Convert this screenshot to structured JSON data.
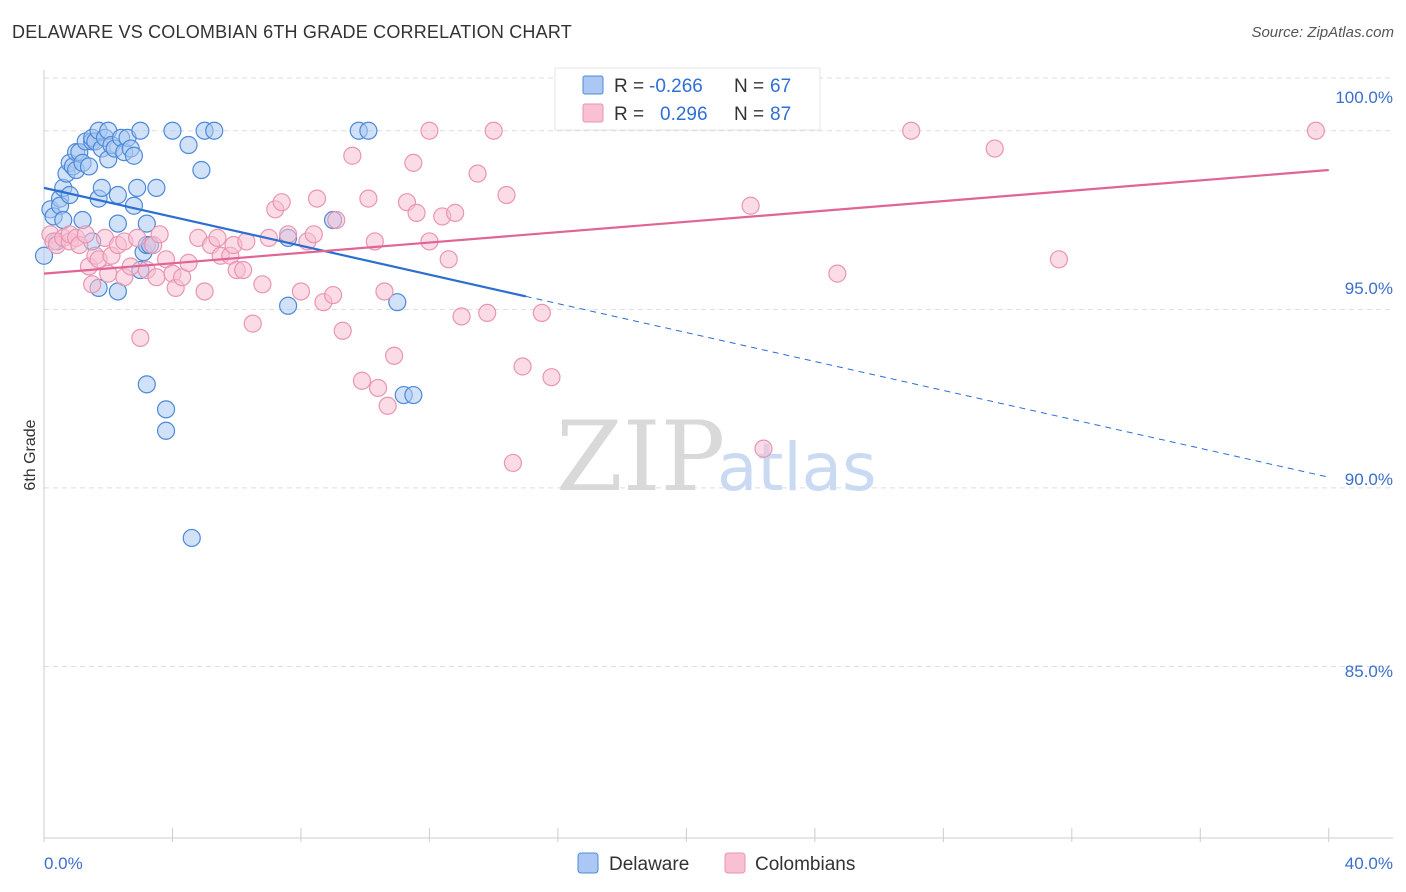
{
  "title": "DELAWARE VS COLOMBIAN 6TH GRADE CORRELATION CHART",
  "source": "Source: ZipAtlas.com",
  "watermark": {
    "zip": "ZIP",
    "atlas": "atlas"
  },
  "colors": {
    "delaware_fill": "#aac8f3",
    "delaware_stroke": "#4d8ad8",
    "delaware_line": "#2d6fd0",
    "colombian_fill": "#f8c0d2",
    "colombian_stroke": "#e995b2",
    "colombian_line": "#e06595",
    "tick_label": "#3b6fc9",
    "grid": "#dddddd"
  },
  "legend": {
    "rows": [
      {
        "series": "Delaware",
        "r_label": "R =",
        "r_value": "-0.266",
        "n_label": "N =",
        "n_value": "67"
      },
      {
        "series": "Colombians",
        "r_label": "R =",
        "r_value": "0.296",
        "n_label": "N =",
        "n_value": "87"
      }
    ]
  },
  "chart_data": {
    "type": "scatter",
    "title": "DELAWARE VS COLOMBIAN 6TH GRADE CORRELATION CHART",
    "xlabel": "",
    "ylabel": "6th Grade",
    "xlim": [
      0,
      42
    ],
    "ylim": [
      80.2,
      101.7
    ],
    "x_tick_labels": [
      "0.0%",
      "40.0%"
    ],
    "y_ticks": [
      100,
      95,
      90,
      85
    ],
    "y_tick_labels": [
      "100.0%",
      "95.0%",
      "90.0%",
      "85.0%"
    ],
    "grid": true,
    "series": [
      {
        "name": "Delaware",
        "r": -0.266,
        "n": 67,
        "trend": {
          "x0": 0,
          "y0": 98.4,
          "x1": 40,
          "y1": 90.3,
          "solid_until_x": 15
        },
        "points": [
          [
            0.0,
            96.5
          ],
          [
            0.2,
            97.8
          ],
          [
            0.3,
            97.6
          ],
          [
            0.4,
            96.9
          ],
          [
            0.5,
            98.1
          ],
          [
            0.5,
            97.9
          ],
          [
            0.6,
            97.5
          ],
          [
            0.6,
            98.4
          ],
          [
            0.7,
            98.8
          ],
          [
            0.8,
            98.2
          ],
          [
            0.8,
            99.1
          ],
          [
            0.9,
            99.0
          ],
          [
            1.0,
            98.9
          ],
          [
            1.0,
            99.4
          ],
          [
            1.1,
            99.4
          ],
          [
            1.2,
            99.1
          ],
          [
            1.2,
            97.5
          ],
          [
            1.3,
            99.7
          ],
          [
            1.4,
            99.0
          ],
          [
            1.5,
            99.7
          ],
          [
            1.5,
            99.8
          ],
          [
            1.5,
            96.9
          ],
          [
            1.6,
            99.7
          ],
          [
            1.7,
            100.0
          ],
          [
            1.7,
            98.1
          ],
          [
            1.7,
            95.6
          ],
          [
            1.8,
            98.4
          ],
          [
            1.8,
            99.5
          ],
          [
            1.9,
            99.8
          ],
          [
            2.0,
            99.2
          ],
          [
            2.0,
            100.0
          ],
          [
            2.1,
            99.6
          ],
          [
            2.2,
            99.5
          ],
          [
            2.3,
            97.4
          ],
          [
            2.3,
            95.5
          ],
          [
            2.3,
            98.2
          ],
          [
            2.4,
            99.8
          ],
          [
            2.5,
            99.4
          ],
          [
            2.6,
            99.8
          ],
          [
            2.7,
            99.5
          ],
          [
            2.8,
            99.3
          ],
          [
            2.8,
            97.9
          ],
          [
            2.9,
            98.4
          ],
          [
            3.0,
            96.1
          ],
          [
            3.0,
            100.0
          ],
          [
            3.1,
            96.6
          ],
          [
            3.2,
            96.8
          ],
          [
            3.2,
            97.4
          ],
          [
            3.3,
            96.8
          ],
          [
            3.5,
            98.4
          ],
          [
            3.8,
            92.2
          ],
          [
            3.8,
            91.6
          ],
          [
            4.0,
            100.0
          ],
          [
            4.5,
            99.6
          ],
          [
            4.6,
            88.6
          ],
          [
            4.9,
            98.9
          ],
          [
            5.0,
            100.0
          ],
          [
            5.3,
            100.0
          ],
          [
            7.6,
            95.1
          ],
          [
            7.6,
            97.0
          ],
          [
            9.0,
            97.5
          ],
          [
            9.8,
            100.0
          ],
          [
            10.1,
            100.0
          ],
          [
            11.0,
            95.2
          ],
          [
            11.2,
            92.6
          ],
          [
            11.5,
            92.6
          ],
          [
            3.2,
            92.9
          ]
        ]
      },
      {
        "name": "Colombians",
        "r": 0.296,
        "n": 87,
        "trend": {
          "x0": 0,
          "y0": 96.0,
          "x1": 40,
          "y1": 98.9
        },
        "points": [
          [
            0.2,
            97.1
          ],
          [
            0.3,
            96.9
          ],
          [
            0.4,
            96.8
          ],
          [
            0.6,
            97.0
          ],
          [
            0.8,
            96.9
          ],
          [
            0.8,
            97.1
          ],
          [
            1.0,
            97.0
          ],
          [
            1.1,
            96.8
          ],
          [
            1.3,
            97.1
          ],
          [
            1.4,
            96.2
          ],
          [
            1.5,
            95.7
          ],
          [
            1.6,
            96.5
          ],
          [
            1.7,
            96.4
          ],
          [
            1.9,
            97.0
          ],
          [
            2.0,
            96.0
          ],
          [
            2.1,
            96.5
          ],
          [
            2.3,
            96.8
          ],
          [
            2.5,
            96.9
          ],
          [
            2.5,
            95.9
          ],
          [
            2.7,
            96.2
          ],
          [
            2.9,
            97.0
          ],
          [
            3.0,
            94.2
          ],
          [
            3.2,
            96.1
          ],
          [
            3.4,
            96.8
          ],
          [
            3.5,
            95.9
          ],
          [
            3.6,
            97.1
          ],
          [
            3.8,
            96.4
          ],
          [
            4.0,
            96.0
          ],
          [
            4.1,
            95.6
          ],
          [
            4.3,
            95.9
          ],
          [
            4.5,
            96.3
          ],
          [
            4.8,
            97.0
          ],
          [
            5.0,
            95.5
          ],
          [
            5.2,
            96.8
          ],
          [
            5.4,
            97.0
          ],
          [
            5.5,
            96.5
          ],
          [
            5.8,
            96.5
          ],
          [
            5.9,
            96.8
          ],
          [
            6.0,
            96.1
          ],
          [
            6.2,
            96.1
          ],
          [
            6.3,
            96.9
          ],
          [
            6.5,
            94.6
          ],
          [
            6.8,
            95.7
          ],
          [
            7.0,
            97.0
          ],
          [
            7.2,
            97.8
          ],
          [
            7.4,
            98.0
          ],
          [
            7.6,
            97.1
          ],
          [
            8.0,
            95.5
          ],
          [
            8.2,
            96.9
          ],
          [
            8.4,
            97.1
          ],
          [
            8.5,
            98.1
          ],
          [
            8.7,
            95.2
          ],
          [
            9.0,
            95.4
          ],
          [
            9.1,
            97.5
          ],
          [
            9.3,
            94.4
          ],
          [
            9.6,
            99.3
          ],
          [
            9.9,
            93.0
          ],
          [
            10.1,
            98.1
          ],
          [
            10.3,
            96.9
          ],
          [
            10.4,
            92.8
          ],
          [
            10.6,
            95.5
          ],
          [
            10.7,
            92.3
          ],
          [
            10.9,
            93.7
          ],
          [
            11.3,
            98.0
          ],
          [
            11.5,
            99.1
          ],
          [
            11.6,
            97.7
          ],
          [
            12.0,
            96.9
          ],
          [
            12.4,
            97.6
          ],
          [
            12.6,
            96.4
          ],
          [
            12.8,
            97.7
          ],
          [
            13.0,
            94.8
          ],
          [
            13.5,
            98.8
          ],
          [
            13.8,
            94.9
          ],
          [
            14.4,
            98.2
          ],
          [
            14.6,
            90.7
          ],
          [
            14.9,
            93.4
          ],
          [
            15.5,
            94.9
          ],
          [
            15.8,
            93.1
          ],
          [
            22.0,
            97.9
          ],
          [
            22.4,
            91.1
          ],
          [
            24.7,
            96.0
          ],
          [
            29.6,
            99.5
          ],
          [
            31.6,
            96.4
          ],
          [
            12.0,
            100.0
          ],
          [
            14.0,
            100.0
          ],
          [
            27.0,
            100.0
          ],
          [
            39.6,
            100.0
          ]
        ]
      }
    ]
  }
}
